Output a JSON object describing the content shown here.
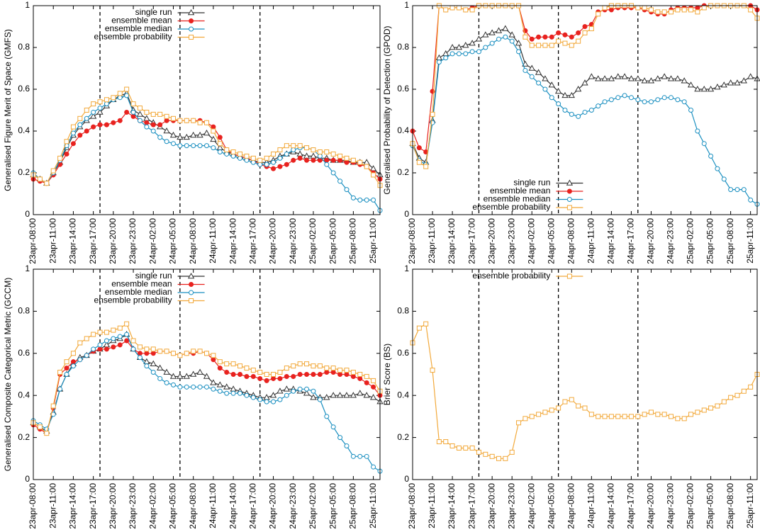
{
  "chart_data": [
    {
      "type": "line",
      "ylabel": "Generalised Figure Merit of Space (GMFS)",
      "legend": "top",
      "categories": [
        "23apr-08:00",
        null,
        null,
        "23apr-11:00",
        null,
        null,
        "23apr-14:00",
        null,
        null,
        "23apr-17:00",
        null,
        null,
        "23apr-20:00",
        null,
        null,
        "23apr-23:00",
        null,
        null,
        "24apr-02:00",
        null,
        null,
        "24apr-05:00",
        null,
        null,
        "24apr-08:00",
        null,
        null,
        "24apr-11:00",
        null,
        null,
        "24apr-14:00",
        null,
        null,
        "24apr-17:00",
        null,
        null,
        "24apr-20:00",
        null,
        null,
        "24apr-23:00",
        null,
        null,
        "25apr-02:00",
        null,
        null,
        "25apr-05:00",
        null,
        null,
        "25apr-08:00",
        null,
        null,
        "25apr-11:00",
        null
      ],
      "vlines": [
        10,
        22,
        34
      ],
      "ylim": [
        0,
        1
      ],
      "yticks": [
        0,
        0.2,
        0.4,
        0.6,
        0.8,
        1
      ],
      "series": [
        {
          "name": "single run",
          "color": "#333333",
          "marker": "triangle",
          "values": [
            0.19,
            0.17,
            0.15,
            0.2,
            0.25,
            0.32,
            0.38,
            0.42,
            0.45,
            0.47,
            0.49,
            0.52,
            0.55,
            0.57,
            0.58,
            0.5,
            0.48,
            0.46,
            0.44,
            0.42,
            0.4,
            0.38,
            0.37,
            0.37,
            0.38,
            0.38,
            0.39,
            0.36,
            0.32,
            0.3,
            0.29,
            0.28,
            0.27,
            0.26,
            0.25,
            0.25,
            0.26,
            0.28,
            0.29,
            0.3,
            0.29,
            0.28,
            0.28,
            0.27,
            0.27,
            0.26,
            0.26,
            0.26,
            0.25,
            0.25,
            0.25,
            0.22,
            0.19
          ]
        },
        {
          "name": "ensemble mean",
          "color": "#e8221f",
          "marker": "circle-filled",
          "values": [
            0.17,
            0.16,
            0.15,
            0.19,
            0.24,
            0.29,
            0.34,
            0.38,
            0.4,
            0.42,
            0.43,
            0.43,
            0.44,
            0.45,
            0.49,
            0.47,
            0.45,
            0.44,
            0.43,
            0.43,
            0.45,
            0.45,
            0.45,
            0.45,
            0.45,
            0.45,
            0.44,
            0.42,
            0.37,
            0.31,
            0.29,
            0.28,
            0.27,
            0.26,
            0.24,
            0.23,
            0.22,
            0.23,
            0.24,
            0.26,
            0.27,
            0.26,
            0.26,
            0.26,
            0.26,
            0.26,
            0.26,
            0.25,
            0.25,
            0.24,
            0.23,
            0.2,
            0.17
          ]
        },
        {
          "name": "ensemble median",
          "color": "#1a8fc0",
          "marker": "circle",
          "values": [
            0.2,
            0.17,
            0.15,
            0.2,
            0.26,
            0.33,
            0.39,
            0.43,
            0.46,
            0.49,
            0.51,
            0.53,
            0.55,
            0.56,
            0.57,
            0.49,
            0.45,
            0.42,
            0.4,
            0.37,
            0.35,
            0.34,
            0.33,
            0.33,
            0.33,
            0.33,
            0.33,
            0.32,
            0.3,
            0.29,
            0.28,
            0.27,
            0.26,
            0.25,
            0.24,
            0.24,
            0.25,
            0.27,
            0.29,
            0.31,
            0.32,
            0.32,
            0.31,
            0.28,
            0.24,
            0.2,
            0.16,
            0.12,
            0.08,
            0.07,
            0.07,
            0.07,
            0.02
          ]
        },
        {
          "name": "ensemble probability",
          "color": "#f2a93b",
          "marker": "square",
          "values": [
            0.19,
            0.17,
            0.15,
            0.21,
            0.27,
            0.35,
            0.42,
            0.46,
            0.5,
            0.53,
            0.54,
            0.55,
            0.56,
            0.58,
            0.6,
            0.53,
            0.51,
            0.49,
            0.48,
            0.48,
            0.47,
            0.46,
            0.45,
            0.45,
            0.45,
            0.44,
            0.44,
            0.4,
            0.34,
            0.31,
            0.3,
            0.29,
            0.28,
            0.27,
            0.26,
            0.27,
            0.29,
            0.31,
            0.33,
            0.33,
            0.33,
            0.32,
            0.31,
            0.3,
            0.3,
            0.29,
            0.28,
            0.27,
            0.26,
            0.25,
            0.23,
            0.19,
            0.14
          ]
        }
      ]
    },
    {
      "type": "line",
      "ylabel": "Generalised Probability of Detection (GPOD)",
      "legend": "bottom",
      "categories": [
        "23apr-08:00",
        null,
        null,
        "23apr-11:00",
        null,
        null,
        "23apr-14:00",
        null,
        null,
        "23apr-17:00",
        null,
        null,
        "23apr-20:00",
        null,
        null,
        "23apr-23:00",
        null,
        null,
        "24apr-02:00",
        null,
        null,
        "24apr-05:00",
        null,
        null,
        "24apr-08:00",
        null,
        null,
        "24apr-11:00",
        null,
        null,
        "24apr-14:00",
        null,
        null,
        "24apr-17:00",
        null,
        null,
        "24apr-20:00",
        null,
        null,
        "24apr-23:00",
        null,
        null,
        "25apr-02:00",
        null,
        null,
        "25apr-05:00",
        null,
        null,
        "25apr-08:00",
        null,
        null,
        "25apr-11:00",
        null
      ],
      "vlines": [
        10,
        22,
        34
      ],
      "ylim": [
        0,
        1
      ],
      "yticks": [
        0,
        0.2,
        0.4,
        0.6,
        0.8,
        1
      ],
      "series": [
        {
          "name": "single run",
          "color": "#333333",
          "marker": "triangle",
          "values": [
            0.34,
            0.27,
            0.25,
            0.45,
            0.75,
            0.77,
            0.8,
            0.8,
            0.81,
            0.82,
            0.84,
            0.86,
            0.87,
            0.88,
            0.89,
            0.86,
            0.82,
            0.72,
            0.7,
            0.68,
            0.65,
            0.62,
            0.59,
            0.57,
            0.57,
            0.6,
            0.63,
            0.66,
            0.65,
            0.65,
            0.65,
            0.66,
            0.66,
            0.65,
            0.65,
            0.64,
            0.64,
            0.65,
            0.66,
            0.65,
            0.65,
            0.64,
            0.62,
            0.6,
            0.6,
            0.6,
            0.61,
            0.62,
            0.63,
            0.63,
            0.64,
            0.66,
            0.65
          ]
        },
        {
          "name": "ensemble mean",
          "color": "#e8221f",
          "marker": "circle-filled",
          "values": [
            0.4,
            0.32,
            0.3,
            0.59,
            1,
            0.98,
            0.99,
            0.99,
            0.98,
            0.99,
            1,
            1,
            1,
            1,
            1,
            1,
            1,
            0.88,
            0.84,
            0.85,
            0.85,
            0.85,
            0.87,
            0.86,
            0.85,
            0.87,
            0.9,
            0.91,
            0.97,
            0.98,
            0.98,
            0.99,
            0.99,
            0.99,
            0.99,
            0.98,
            0.97,
            0.96,
            0.96,
            0.98,
            0.99,
            0.99,
            0.99,
            0.99,
            1,
            1,
            1,
            1,
            1,
            1,
            1,
            1,
            0.98
          ]
        },
        {
          "name": "ensemble median",
          "color": "#1a8fc0",
          "marker": "circle",
          "values": [
            0.33,
            0.26,
            0.24,
            0.44,
            0.73,
            0.75,
            0.77,
            0.77,
            0.77,
            0.78,
            0.78,
            0.8,
            0.82,
            0.84,
            0.85,
            0.83,
            0.78,
            0.69,
            0.66,
            0.63,
            0.6,
            0.56,
            0.53,
            0.5,
            0.48,
            0.47,
            0.49,
            0.5,
            0.52,
            0.54,
            0.55,
            0.56,
            0.57,
            0.56,
            0.55,
            0.54,
            0.54,
            0.55,
            0.56,
            0.56,
            0.55,
            0.54,
            0.5,
            0.4,
            0.34,
            0.28,
            0.22,
            0.17,
            0.12,
            0.12,
            0.12,
            0.07,
            0.05
          ]
        },
        {
          "name": "ensemble probability",
          "color": "#f2a93b",
          "marker": "square",
          "values": [
            0.34,
            0.25,
            0.23,
            0.48,
            1,
            0.98,
            0.99,
            0.99,
            0.98,
            0.98,
            1,
            1,
            1,
            1,
            1,
            1,
            1,
            0.85,
            0.81,
            0.81,
            0.81,
            0.81,
            0.83,
            0.82,
            0.81,
            0.83,
            0.87,
            0.89,
            0.96,
            0.99,
            1,
            1,
            1,
            1,
            0.99,
            0.99,
            0.98,
            0.97,
            0.97,
            0.97,
            0.98,
            0.98,
            0.98,
            0.97,
            0.99,
            1,
            1,
            1,
            1,
            1,
            1,
            0.98,
            0.94
          ]
        }
      ]
    },
    {
      "type": "line",
      "ylabel": "Generalised Composite Categorical Metric (GCCM)",
      "legend": "top",
      "categories": [
        "23apr-08:00",
        null,
        null,
        "23apr-11:00",
        null,
        null,
        "23apr-14:00",
        null,
        null,
        "23apr-17:00",
        null,
        null,
        "23apr-20:00",
        null,
        null,
        "23apr-23:00",
        null,
        null,
        "24apr-02:00",
        null,
        null,
        "24apr-05:00",
        null,
        null,
        "24apr-08:00",
        null,
        null,
        "24apr-11:00",
        null,
        null,
        "24apr-14:00",
        null,
        null,
        "24apr-17:00",
        null,
        null,
        "24apr-20:00",
        null,
        null,
        "24apr-23:00",
        null,
        null,
        "25apr-02:00",
        null,
        null,
        "25apr-05:00",
        null,
        null,
        "25apr-08:00",
        null,
        null,
        "25apr-11:00",
        null
      ],
      "vlines": [
        10,
        22,
        34
      ],
      "ylim": [
        0,
        1
      ],
      "yticks": [
        0,
        0.2,
        0.4,
        0.6,
        0.8,
        1
      ],
      "series": [
        {
          "name": "single run",
          "color": "#333333",
          "marker": "triangle",
          "values": [
            0.27,
            0.25,
            0.23,
            0.32,
            0.43,
            0.5,
            0.55,
            0.58,
            0.59,
            0.61,
            0.62,
            0.64,
            0.66,
            0.67,
            0.69,
            0.62,
            0.58,
            0.56,
            0.55,
            0.53,
            0.51,
            0.49,
            0.49,
            0.49,
            0.5,
            0.51,
            0.49,
            0.46,
            0.45,
            0.44,
            0.43,
            0.42,
            0.41,
            0.4,
            0.39,
            0.39,
            0.4,
            0.42,
            0.43,
            0.43,
            0.42,
            0.41,
            0.39,
            0.39,
            0.39,
            0.4,
            0.4,
            0.4,
            0.4,
            0.41,
            0.4,
            0.39,
            0.37
          ]
        },
        {
          "name": "ensemble mean",
          "color": "#e8221f",
          "marker": "circle-filled",
          "values": [
            0.26,
            0.24,
            0.22,
            0.34,
            0.5,
            0.53,
            0.56,
            0.57,
            0.59,
            0.61,
            0.62,
            0.62,
            0.63,
            0.64,
            0.66,
            0.62,
            0.6,
            0.6,
            0.6,
            0.61,
            0.61,
            0.6,
            0.59,
            0.6,
            0.6,
            0.61,
            0.6,
            0.57,
            0.53,
            0.51,
            0.5,
            0.5,
            0.49,
            0.49,
            0.48,
            0.47,
            0.48,
            0.48,
            0.49,
            0.49,
            0.5,
            0.5,
            0.5,
            0.5,
            0.51,
            0.51,
            0.5,
            0.5,
            0.49,
            0.48,
            0.46,
            0.44,
            0.4
          ]
        },
        {
          "name": "ensemble median",
          "color": "#1a8fc0",
          "marker": "circle",
          "values": [
            0.28,
            0.26,
            0.24,
            0.31,
            0.43,
            0.5,
            0.54,
            0.57,
            0.59,
            0.62,
            0.64,
            0.66,
            0.67,
            0.68,
            0.69,
            0.62,
            0.58,
            0.54,
            0.51,
            0.48,
            0.46,
            0.45,
            0.44,
            0.44,
            0.44,
            0.44,
            0.44,
            0.43,
            0.42,
            0.41,
            0.41,
            0.41,
            0.4,
            0.39,
            0.38,
            0.37,
            0.37,
            0.38,
            0.4,
            0.42,
            0.43,
            0.43,
            0.42,
            0.38,
            0.3,
            0.25,
            0.2,
            0.16,
            0.11,
            0.11,
            0.11,
            0.06,
            0.04
          ]
        },
        {
          "name": "ensemble probability",
          "color": "#f2a93b",
          "marker": "square",
          "values": [
            0.27,
            0.25,
            0.22,
            0.35,
            0.51,
            0.56,
            0.6,
            0.65,
            0.67,
            0.69,
            0.7,
            0.7,
            0.71,
            0.72,
            0.74,
            0.66,
            0.63,
            0.62,
            0.62,
            0.61,
            0.61,
            0.6,
            0.59,
            0.6,
            0.61,
            0.61,
            0.6,
            0.59,
            0.56,
            0.55,
            0.55,
            0.54,
            0.53,
            0.52,
            0.51,
            0.5,
            0.5,
            0.51,
            0.53,
            0.54,
            0.55,
            0.55,
            0.54,
            0.54,
            0.53,
            0.53,
            0.52,
            0.52,
            0.51,
            0.5,
            0.49,
            0.47,
            0.42
          ]
        }
      ]
    },
    {
      "type": "line",
      "ylabel": "Brier Score (BS)",
      "legend": "top",
      "categories": [
        "23apr-08:00",
        null,
        null,
        "23apr-11:00",
        null,
        null,
        "23apr-14:00",
        null,
        null,
        "23apr-17:00",
        null,
        null,
        "23apr-20:00",
        null,
        null,
        "23apr-23:00",
        null,
        null,
        "24apr-02:00",
        null,
        null,
        "24apr-05:00",
        null,
        null,
        "24apr-08:00",
        null,
        null,
        "24apr-11:00",
        null,
        null,
        "24apr-14:00",
        null,
        null,
        "24apr-17:00",
        null,
        null,
        "24apr-20:00",
        null,
        null,
        "24apr-23:00",
        null,
        null,
        "25apr-02:00",
        null,
        null,
        "25apr-05:00",
        null,
        null,
        "25apr-08:00",
        null,
        null,
        "25apr-11:00",
        null
      ],
      "vlines": [
        10,
        22,
        34
      ],
      "ylim": [
        0,
        1
      ],
      "yticks": [
        0,
        0.2,
        0.4,
        0.6,
        0.8,
        1
      ],
      "series": [
        {
          "name": "ensemble probability",
          "color": "#f2a93b",
          "marker": "square",
          "values": [
            0.65,
            0.72,
            0.74,
            0.52,
            0.18,
            0.18,
            0.16,
            0.15,
            0.15,
            0.15,
            0.13,
            0.12,
            0.11,
            0.1,
            0.1,
            0.13,
            0.27,
            0.29,
            0.3,
            0.31,
            0.32,
            0.33,
            0.34,
            0.37,
            0.38,
            0.35,
            0.34,
            0.31,
            0.3,
            0.3,
            0.3,
            0.3,
            0.3,
            0.3,
            0.3,
            0.31,
            0.32,
            0.31,
            0.31,
            0.3,
            0.29,
            0.29,
            0.31,
            0.32,
            0.33,
            0.34,
            0.35,
            0.37,
            0.39,
            0.4,
            0.42,
            0.44,
            0.5
          ]
        }
      ]
    }
  ]
}
